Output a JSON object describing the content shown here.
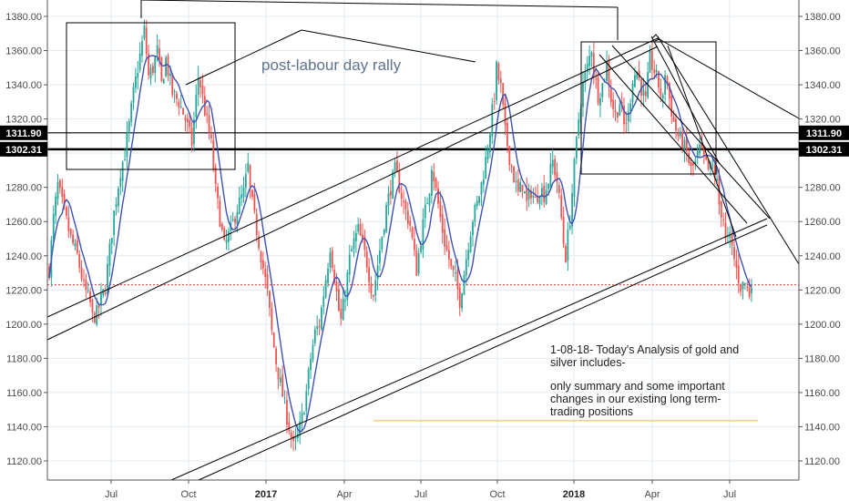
{
  "chart_data": {
    "type": "candlestick",
    "y_axis": {
      "range": [
        1110,
        1390
      ],
      "ticks": [
        "1120.00",
        "1140.00",
        "1160.00",
        "1180.00",
        "1200.00",
        "1220.00",
        "1240.00",
        "1260.00",
        "1280.00",
        "1300.00",
        "1320.00",
        "1340.00",
        "1360.00",
        "1380.00"
      ],
      "position": "both"
    },
    "x_axis": {
      "ticks": [
        {
          "label": "Jul",
          "bold": false
        },
        {
          "label": "Oct",
          "bold": false
        },
        {
          "label": "2017",
          "bold": true
        },
        {
          "label": "Apr",
          "bold": false
        },
        {
          "label": "Jul",
          "bold": false
        },
        {
          "label": "Oct",
          "bold": false
        },
        {
          "label": "2018",
          "bold": true
        },
        {
          "label": "Apr",
          "bold": false
        },
        {
          "label": "Jul",
          "bold": false
        }
      ]
    },
    "grid": true,
    "price_levels": [
      {
        "label": "1311.90",
        "value": 1311.9,
        "style": "solid"
      },
      {
        "label": "1302.31",
        "value": 1302.31,
        "style": "solid-bold"
      }
    ],
    "reference_lines": [
      {
        "value": 1223,
        "color": "#e53935",
        "style": "dotted"
      },
      {
        "value": 1143.5,
        "color": "#f5b041",
        "style": "solid"
      }
    ],
    "price_path": [
      [
        0,
        1232
      ],
      [
        2,
        1262
      ],
      [
        4,
        1281
      ],
      [
        7,
        1265
      ],
      [
        10,
        1250
      ],
      [
        13,
        1240
      ],
      [
        16,
        1222
      ],
      [
        19,
        1212
      ],
      [
        20,
        1204
      ],
      [
        22,
        1206
      ],
      [
        26,
        1222
      ],
      [
        30,
        1265
      ],
      [
        33,
        1290
      ],
      [
        35,
        1300
      ],
      [
        37,
        1316
      ],
      [
        39,
        1335
      ],
      [
        41,
        1350
      ],
      [
        43,
        1364
      ],
      [
        44,
        1372
      ],
      [
        46,
        1345
      ],
      [
        48,
        1350
      ],
      [
        50,
        1360
      ],
      [
        52,
        1340
      ],
      [
        54,
        1355
      ],
      [
        57,
        1335
      ],
      [
        60,
        1330
      ],
      [
        63,
        1320
      ],
      [
        66,
        1306
      ],
      [
        69,
        1345
      ],
      [
        70,
        1340
      ],
      [
        72,
        1325
      ],
      [
        75,
        1305
      ],
      [
        77,
        1278
      ],
      [
        79,
        1262
      ],
      [
        81,
        1245
      ],
      [
        84,
        1255
      ],
      [
        87,
        1268
      ],
      [
        90,
        1277
      ],
      [
        92,
        1292
      ],
      [
        93,
        1278
      ],
      [
        95,
        1262
      ],
      [
        97,
        1248
      ],
      [
        99,
        1233
      ],
      [
        101,
        1218
      ],
      [
        103,
        1195
      ],
      [
        105,
        1178
      ],
      [
        107,
        1165
      ],
      [
        109,
        1152
      ],
      [
        111,
        1140
      ],
      [
        113,
        1128
      ],
      [
        115,
        1134
      ],
      [
        117,
        1145
      ],
      [
        119,
        1160
      ],
      [
        121,
        1180
      ],
      [
        123,
        1195
      ],
      [
        125,
        1200
      ],
      [
        127,
        1218
      ],
      [
        129,
        1236
      ],
      [
        130,
        1246
      ],
      [
        132,
        1228
      ],
      [
        134,
        1208
      ],
      [
        135,
        1202
      ],
      [
        137,
        1218
      ],
      [
        139,
        1238
      ],
      [
        141,
        1248
      ],
      [
        143,
        1255
      ],
      [
        145,
        1246
      ],
      [
        147,
        1236
      ],
      [
        149,
        1222
      ],
      [
        150,
        1218
      ],
      [
        152,
        1235
      ],
      [
        154,
        1252
      ],
      [
        156,
        1268
      ],
      [
        158,
        1280
      ],
      [
        160,
        1290
      ],
      [
        162,
        1281
      ],
      [
        164,
        1270
      ],
      [
        166,
        1262
      ],
      [
        167,
        1258
      ],
      [
        169,
        1240
      ],
      [
        170,
        1232
      ],
      [
        172,
        1250
      ],
      [
        174,
        1266
      ],
      [
        176,
        1280
      ],
      [
        177,
        1294
      ],
      [
        179,
        1278
      ],
      [
        181,
        1262
      ],
      [
        183,
        1248
      ],
      [
        185,
        1238
      ],
      [
        186,
        1232
      ],
      [
        188,
        1226
      ],
      [
        190,
        1214
      ],
      [
        192,
        1230
      ],
      [
        194,
        1248
      ],
      [
        196,
        1262
      ],
      [
        198,
        1270
      ],
      [
        200,
        1282
      ],
      [
        202,
        1296
      ],
      [
        204,
        1314
      ],
      [
        206,
        1334
      ],
      [
        207,
        1349
      ],
      [
        209,
        1338
      ],
      [
        211,
        1312
      ],
      [
        213,
        1298
      ],
      [
        215,
        1286
      ],
      [
        217,
        1276
      ],
      [
        219,
        1282
      ],
      [
        221,
        1270
      ],
      [
        223,
        1278
      ],
      [
        225,
        1272
      ],
      [
        227,
        1280
      ],
      [
        229,
        1276
      ],
      [
        231,
        1284
      ],
      [
        233,
        1295
      ],
      [
        235,
        1284
      ],
      [
        237,
        1262
      ],
      [
        238,
        1248
      ],
      [
        239,
        1240
      ],
      [
        241,
        1262
      ],
      [
        243,
        1292
      ],
      [
        245,
        1320
      ],
      [
        247,
        1340
      ],
      [
        249,
        1350
      ],
      [
        251,
        1362
      ],
      [
        252,
        1348
      ],
      [
        254,
        1334
      ],
      [
        256,
        1340
      ],
      [
        258,
        1352
      ],
      [
        260,
        1332
      ],
      [
        262,
        1322
      ],
      [
        264,
        1330
      ],
      [
        266,
        1316
      ],
      [
        268,
        1322
      ],
      [
        270,
        1344
      ],
      [
        272,
        1348
      ],
      [
        274,
        1338
      ],
      [
        276,
        1330
      ],
      [
        278,
        1355
      ],
      [
        280,
        1348
      ],
      [
        282,
        1340
      ],
      [
        284,
        1330
      ],
      [
        285,
        1348
      ],
      [
        287,
        1332
      ],
      [
        289,
        1318
      ],
      [
        291,
        1310
      ],
      [
        293,
        1306
      ],
      [
        295,
        1300
      ],
      [
        297,
        1290
      ],
      [
        299,
        1294
      ],
      [
        301,
        1302
      ],
      [
        303,
        1296
      ],
      [
        305,
        1290
      ],
      [
        307,
        1292
      ],
      [
        309,
        1282
      ],
      [
        310,
        1270
      ],
      [
        312,
        1262
      ],
      [
        313,
        1248
      ],
      [
        315,
        1250
      ],
      [
        317,
        1238
      ],
      [
        318,
        1232
      ],
      [
        320,
        1222
      ],
      [
        322,
        1224
      ],
      [
        324,
        1218
      ],
      [
        325,
        1226
      ]
    ],
    "annotations": {
      "rally_label": "post-labour day rally",
      "note_lines": [
        "1-08-18- Today's Analysis of gold and",
        "silver includes-",
        "",
        "only summary and some important",
        "changes in our existing long term-",
        "trading positions"
      ]
    },
    "colors": {
      "up": "#26a69a",
      "down": "#ef5350",
      "ma": "#3f51b5",
      "grid": "#e1ecf2",
      "lines": "#000000",
      "badge_bg": "#000000"
    }
  }
}
